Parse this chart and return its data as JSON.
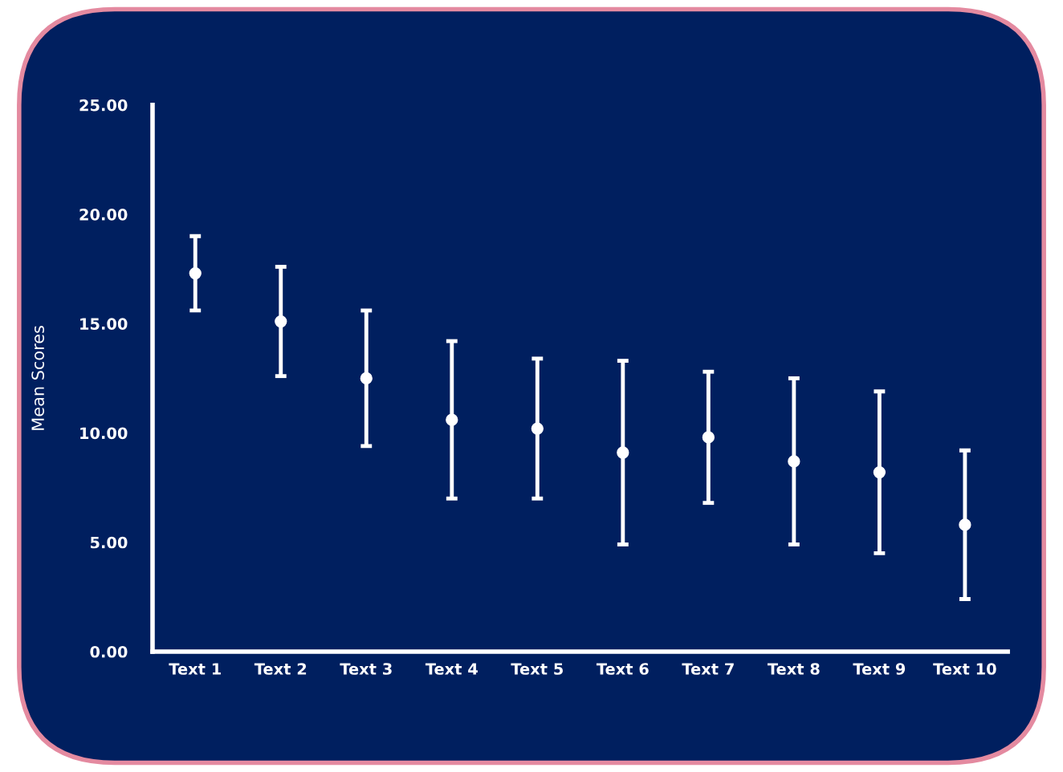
{
  "chart_data": {
    "type": "scatter",
    "ylabel": "Mean Scores",
    "categories": [
      "Text 1",
      "Text 2",
      "Text 3",
      "Text 4",
      "Text 5",
      "Text 6",
      "Text 7",
      "Text 8",
      "Text 9",
      "Text 10"
    ],
    "series": [
      {
        "color": "#ffffff",
        "values": [
          17.3,
          15.1,
          12.5,
          10.6,
          10.2,
          9.1,
          9.8,
          8.7,
          8.2,
          5.8
        ],
        "errors": [
          1.7,
          2.5,
          3.1,
          3.6,
          3.2,
          4.2,
          3.0,
          3.8,
          3.7,
          3.4
        ]
      }
    ],
    "marker": "circle",
    "grid": false,
    "legend": false,
    "ylim": [
      0,
      25
    ],
    "yticks": [
      {
        "value": 0,
        "label": "0.00"
      },
      {
        "value": 5,
        "label": "5.00"
      },
      {
        "value": 10,
        "label": "10.00"
      },
      {
        "value": 15,
        "label": "15.00"
      },
      {
        "value": 20,
        "label": "20.00"
      },
      {
        "value": 25,
        "label": "25.00"
      }
    ]
  }
}
